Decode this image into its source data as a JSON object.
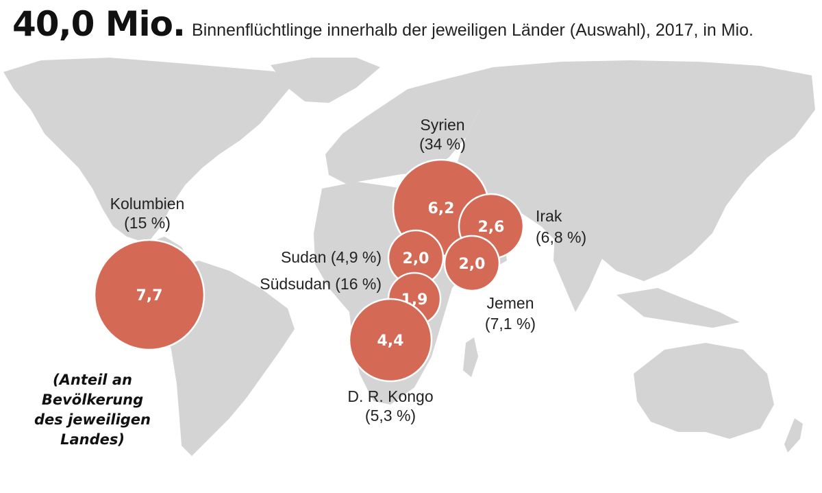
{
  "header": {
    "total": "40,0 Mio.",
    "subtitle": "Binnenflüchtlinge innerhalb der jeweiligen Länder (Auswahl), 2017, in Mio."
  },
  "note": "(Anteil an Bevölkerung des jeweiligen Landes)",
  "colors": {
    "bubble": "#d46a55",
    "land": "#d4d4d4",
    "sea": "#ffffff"
  },
  "countries": [
    {
      "id": "kolumbien",
      "name": "Kolumbien",
      "share": "(15 %)",
      "value": "7,7"
    },
    {
      "id": "syrien",
      "name": "Syrien",
      "share": "(34 %)",
      "value": "6,2"
    },
    {
      "id": "irak",
      "name": "Irak",
      "share": "(6,8 %)",
      "value": "2,6"
    },
    {
      "id": "sudan",
      "name": "Sudan",
      "share": "(4,9 %)",
      "value": "2,0"
    },
    {
      "id": "jemen",
      "name": "Jemen",
      "share": "(7,1 %)",
      "value": "2,0"
    },
    {
      "id": "suedsudan",
      "name": "Südsudan",
      "share": "(16 %)",
      "value": "1,9"
    },
    {
      "id": "kongo",
      "name": "D. R. Kongo",
      "share": "(5,3 %)",
      "value": "4,4"
    }
  ]
}
